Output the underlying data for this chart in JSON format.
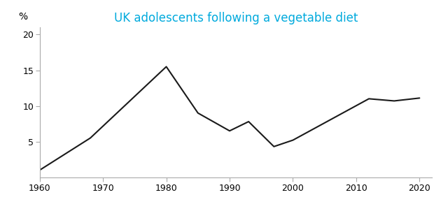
{
  "x": [
    1960,
    1968,
    1980,
    1985,
    1990,
    1993,
    1997,
    2000,
    2012,
    2016,
    2020
  ],
  "y": [
    1.0,
    5.5,
    15.5,
    9.0,
    6.5,
    7.8,
    4.3,
    5.2,
    11.0,
    10.7,
    11.1
  ],
  "title": "UK adolescents following a vegetable diet",
  "title_color": "#00AADD",
  "ylabel": "%",
  "xlim": [
    1960,
    2022
  ],
  "ylim": [
    0,
    21
  ],
  "yticks": [
    5,
    10,
    15,
    20
  ],
  "xticks": [
    1960,
    1970,
    1980,
    1990,
    2000,
    2010,
    2020
  ],
  "line_color": "#1a1a1a",
  "line_width": 1.5,
  "background_color": "#ffffff",
  "title_fontsize": 12,
  "tick_fontsize": 9,
  "ylabel_fontsize": 10,
  "axis_color": "#aaaaaa"
}
